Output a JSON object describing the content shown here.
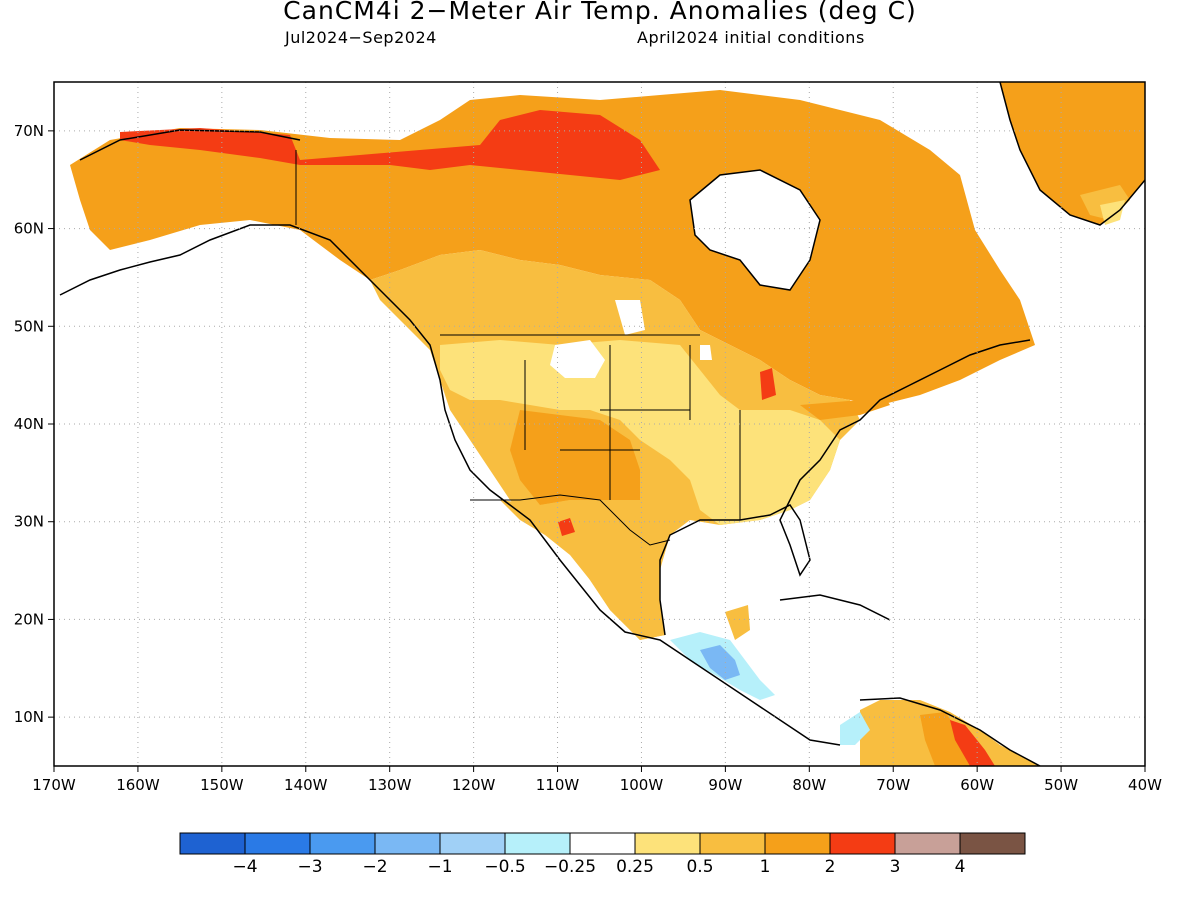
{
  "title": "CanCM4i 2−Meter Air Temp. Anomalies (deg C)",
  "subtitle_left": "Jul2024−Sep2024",
  "subtitle_right": "April2024 initial conditions",
  "map": {
    "lon_range": [
      -170,
      -40
    ],
    "lat_range": [
      5,
      75
    ],
    "lat_labels": [
      "10N",
      "20N",
      "30N",
      "40N",
      "50N",
      "60N",
      "70N"
    ],
    "lon_labels": [
      "170W",
      "160W",
      "150W",
      "140W",
      "130W",
      "120W",
      "110W",
      "100W",
      "90W",
      "80W",
      "70W",
      "60W",
      "50W",
      "40W"
    ]
  },
  "legend": {
    "labels": [
      "−4",
      "−3",
      "−2",
      "−1",
      "−0.5",
      "−0.25",
      "0.25",
      "0.5",
      "1",
      "2",
      "3",
      "4"
    ],
    "colors": [
      "#1e62d2",
      "#2a7ae6",
      "#4a9af0",
      "#7ab8f4",
      "#a0d0f6",
      "#b6f0fa",
      "#ffffff",
      "#fde27a",
      "#f8be40",
      "#f5a01a",
      "#f43c14",
      "#c8a098",
      "#7a5444"
    ]
  }
}
